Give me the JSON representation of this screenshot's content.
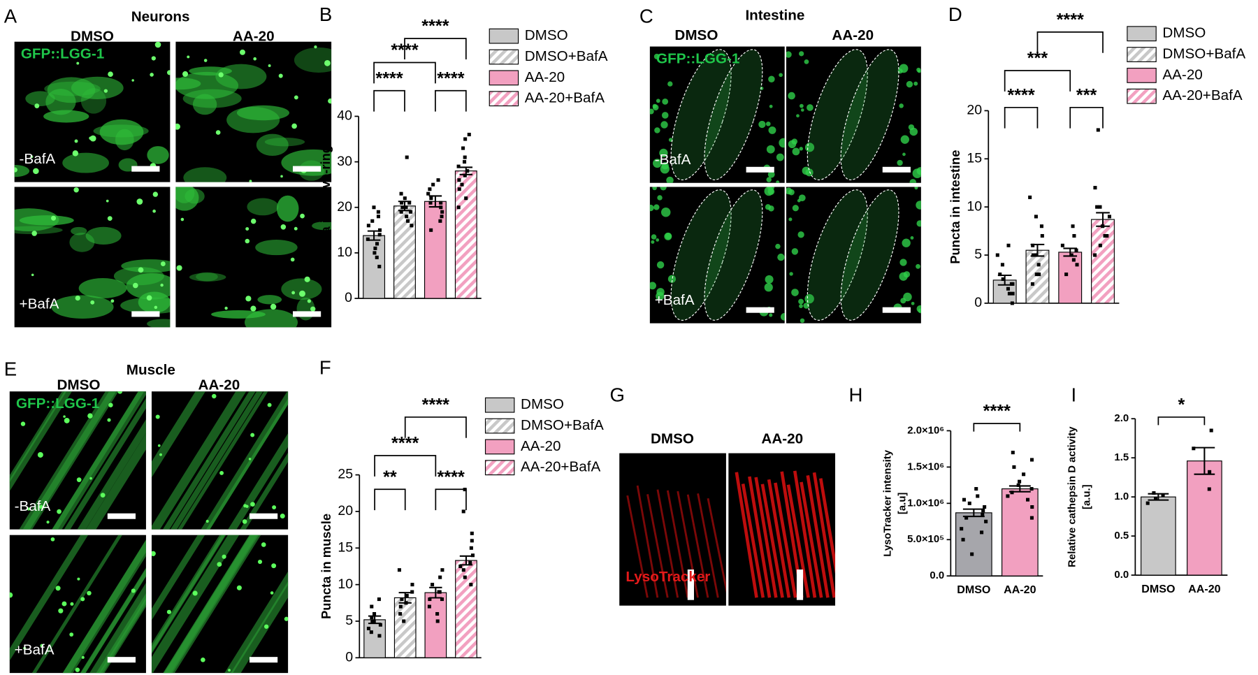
{
  "images": [
    {
      "letter": "A",
      "title": "Neurons",
      "columns": [
        "DMSO",
        "AA-20"
      ],
      "marker": "GFP::LGG-1",
      "rows": [
        "-BafA",
        "+BafA"
      ]
    },
    {
      "letter": "C",
      "title": "Intestine",
      "columns": [
        "DMSO",
        "AA-20"
      ],
      "marker": "GFP::LGG-1",
      "rows": [
        "-BafA",
        "+BafA"
      ]
    },
    {
      "letter": "E",
      "title": "Muscle",
      "columns": [
        "DMSO",
        "AA-20"
      ],
      "marker": "GFP::LGG-1",
      "rows": [
        "-BafA",
        "+BafA"
      ]
    },
    {
      "letter": "G",
      "columns": [
        "DMSO",
        "AA-20"
      ],
      "marker": "LysoTracker"
    }
  ],
  "chart_data": [
    {
      "panel": "B",
      "type": "bar",
      "ylabel": [
        "Puncta in nerve-ring"
      ],
      "legend": true,
      "categories": [
        "DMSO",
        "DMSO+BafA",
        "AA-20",
        "AA-20+BafA"
      ],
      "colors": [
        "#c8c8c8",
        "#c8c8c8",
        "#f2a0c0",
        "#f2a0c0"
      ],
      "hatch": [
        false,
        true,
        false,
        true
      ],
      "values": [
        13.8,
        20.3,
        21.3,
        28.0
      ],
      "errors": [
        1.0,
        1.0,
        1.2,
        0.8
      ],
      "points": [
        [
          10,
          12,
          13,
          15,
          17,
          18,
          19,
          9,
          11,
          14,
          16,
          20,
          7
        ],
        [
          17,
          19,
          20,
          21,
          22,
          23,
          31,
          18,
          20,
          21,
          19,
          16
        ],
        [
          15,
          17,
          19,
          20,
          21,
          22,
          24,
          25,
          26,
          18,
          23,
          21
        ],
        [
          22,
          24,
          26,
          27,
          28,
          29,
          30,
          31,
          33,
          35,
          36,
          25,
          20
        ]
      ],
      "ylim": [
        0,
        40
      ],
      "yticks": [
        0,
        10,
        20,
        30,
        40
      ],
      "brackets": [
        {
          "label": "****",
          "pair": [
            0,
            1
          ]
        },
        {
          "label": "****",
          "pair": [
            2,
            3
          ]
        },
        {
          "label": "****",
          "pair": [
            0,
            2
          ]
        },
        {
          "label": "****",
          "pair": [
            1,
            3
          ]
        }
      ]
    },
    {
      "panel": "D",
      "type": "bar",
      "ylabel": [
        "Puncta in intestine"
      ],
      "legend": true,
      "categories": [
        "DMSO",
        "DMSO+BafA",
        "AA-20",
        "AA-20+BafA"
      ],
      "colors": [
        "#c8c8c8",
        "#c8c8c8",
        "#f2a0c0",
        "#f2a0c0"
      ],
      "hatch": [
        false,
        true,
        false,
        true
      ],
      "values": [
        2.4,
        5.5,
        5.3,
        8.7
      ],
      "errors": [
        0.5,
        0.6,
        0.4,
        0.7
      ],
      "points": [
        [
          0,
          1,
          1.5,
          2,
          2.5,
          3,
          4,
          5,
          6,
          1,
          2
        ],
        [
          2,
          3,
          4,
          5,
          6,
          7,
          8,
          9,
          11,
          3,
          5
        ],
        [
          3,
          4,
          5,
          5.5,
          6,
          7,
          8,
          4.5
        ],
        [
          5,
          6,
          7,
          8,
          9,
          10,
          10,
          12,
          18,
          7
        ]
      ],
      "ylim": [
        0,
        20
      ],
      "yticks": [
        0,
        5,
        10,
        15,
        20
      ],
      "brackets": [
        {
          "label": "****",
          "pair": [
            0,
            1
          ]
        },
        {
          "label": "***",
          "pair": [
            2,
            3
          ]
        },
        {
          "label": "***",
          "pair": [
            0,
            2
          ]
        },
        {
          "label": "****",
          "pair": [
            1,
            3
          ]
        }
      ]
    },
    {
      "panel": "F",
      "type": "bar",
      "ylabel": [
        "Puncta in muscle"
      ],
      "legend": true,
      "categories": [
        "DMSO",
        "DMSO+BafA",
        "AA-20",
        "AA-20+BafA"
      ],
      "colors": [
        "#c8c8c8",
        "#c8c8c8",
        "#f2a0c0",
        "#f2a0c0"
      ],
      "hatch": [
        false,
        true,
        false,
        true
      ],
      "values": [
        5.2,
        8.2,
        8.9,
        13.3
      ],
      "errors": [
        0.5,
        0.7,
        0.7,
        0.6
      ],
      "points": [
        [
          3,
          4,
          4.5,
          5,
          5.5,
          6,
          7,
          8,
          3.5,
          5
        ],
        [
          5,
          6,
          7,
          8,
          9,
          10,
          12,
          8.5,
          7.5
        ],
        [
          5,
          6,
          7,
          8,
          9,
          10,
          11,
          12,
          8,
          9
        ],
        [
          10,
          11,
          12,
          13,
          14,
          15,
          16,
          17,
          20,
          23,
          12.5
        ]
      ],
      "ylim": [
        0,
        25
      ],
      "yticks": [
        0,
        5,
        10,
        15,
        20,
        25
      ],
      "brackets": [
        {
          "label": "**",
          "pair": [
            0,
            1
          ]
        },
        {
          "label": "****",
          "pair": [
            2,
            3
          ]
        },
        {
          "label": "****",
          "pair": [
            0,
            2
          ]
        },
        {
          "label": "****",
          "pair": [
            1,
            3
          ]
        }
      ]
    },
    {
      "panel": "H",
      "type": "bar",
      "ylabel": [
        "LysoTracker intensity",
        "[a.u]"
      ],
      "legend": false,
      "categories": [
        "DMSO",
        "AA-20"
      ],
      "colors": [
        "#a6a6ab",
        "#f2a0c0"
      ],
      "hatch": [
        false,
        false
      ],
      "values": [
        870000,
        1200000
      ],
      "errors": [
        50000,
        40000
      ],
      "points": [
        [
          300000,
          500000,
          650000,
          750000,
          850000,
          900000,
          950000,
          1000000,
          1100000,
          1200000,
          600000,
          800000,
          1050000
        ],
        [
          800000,
          950000,
          1050000,
          1150000,
          1200000,
          1250000,
          1300000,
          1400000,
          1500000,
          1600000,
          1700000,
          1100000
        ]
      ],
      "ylim": [
        0,
        2000000
      ],
      "yticks": [
        {
          "value": 0,
          "label": "0.0"
        },
        {
          "value": 500000,
          "label": "5.0×10⁵"
        },
        {
          "value": 1000000,
          "label": "1.0×10⁶"
        },
        {
          "value": 1500000,
          "label": "1.5×10⁶"
        },
        {
          "value": 2000000,
          "label": "2.0×10⁶"
        }
      ],
      "brackets": [
        {
          "label": "****",
          "pair": [
            0,
            1
          ]
        }
      ]
    },
    {
      "panel": "I",
      "type": "bar",
      "ylabel": [
        "Relative cathepsin D activity",
        "[a.u.]"
      ],
      "legend": false,
      "categories": [
        "DMSO",
        "AA-20"
      ],
      "colors": [
        "#c8c8c8",
        "#f2a0c0"
      ],
      "hatch": [
        false,
        false
      ],
      "values": [
        1.0,
        1.46
      ],
      "errors": [
        0.04,
        0.17
      ],
      "points": [
        [
          0.92,
          0.98,
          1.02,
          1.05
        ],
        [
          1.1,
          1.32,
          1.62,
          1.85
        ]
      ],
      "ylim": [
        0,
        2
      ],
      "yticks": [
        {
          "value": 0,
          "label": "0.0"
        },
        {
          "value": 0.5,
          "label": "0.5"
        },
        {
          "value": 1,
          "label": "1.0"
        },
        {
          "value": 1.5,
          "label": "1.5"
        },
        {
          "value": 2,
          "label": "2.0"
        }
      ],
      "brackets": [
        {
          "label": "*",
          "pair": [
            0,
            1
          ]
        }
      ]
    }
  ]
}
